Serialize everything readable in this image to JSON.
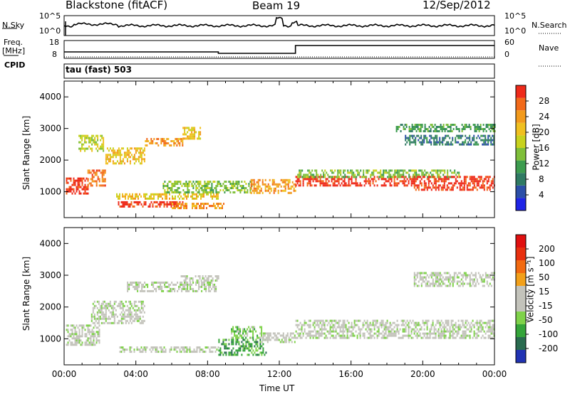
{
  "header": {
    "station": "Blackstone (fitACF)",
    "beam": "Beam 19",
    "date": "12/Sep/2012"
  },
  "nsky_panel": {
    "left_label": "N.Sky",
    "right_label": "N.Search",
    "left_ticks": [
      "10^5",
      "10^0"
    ],
    "right_ticks": [
      "10^5",
      "10^0"
    ]
  },
  "freq_panel": {
    "left_label_1": "Freq.",
    "left_label_2": "[MHz]",
    "right_label": "Nave",
    "left_ticks": [
      "18",
      "8"
    ],
    "right_ticks": [
      "60",
      "0"
    ]
  },
  "cpid_panel": {
    "left_label": "CPID",
    "mode_text": "tau (fast) 503"
  },
  "colors": {
    "frame": "#000000",
    "background": "#ffffff"
  },
  "chart_data": [
    {
      "type": "heatmap",
      "title": "Power",
      "xlabel": "Time UT",
      "ylabel": "Slant Range [km]",
      "x_ticks": [
        "00:00",
        "04:00",
        "08:00",
        "12:00",
        "16:00",
        "20:00",
        "00:00"
      ],
      "x_range_hours": [
        0,
        24
      ],
      "ylim": [
        180,
        4500
      ],
      "y_ticks": [
        "1000",
        "2000",
        "3000",
        "4000"
      ],
      "y_tick_values": [
        1000,
        2000,
        3000,
        4000
      ],
      "colorbar": {
        "label": "Power [dB]",
        "ticks": [
          "4",
          "8",
          "12",
          "16",
          "20",
          "24",
          "28"
        ],
        "colors": [
          "#1f24e6",
          "#2c4fa8",
          "#2f7a63",
          "#3d9c4f",
          "#7fbf3a",
          "#c8d21e",
          "#f0c020",
          "#f29a1c",
          "#f26a1a",
          "#ee2a1a"
        ]
      },
      "features": [
        {
          "t0": 0.1,
          "t1": 1.3,
          "r0": 950,
          "r1": 1450,
          "level": 9
        },
        {
          "t0": 1.3,
          "t1": 2.3,
          "r0": 1200,
          "r1": 1700,
          "level": 8
        },
        {
          "t0": 0.8,
          "t1": 2.2,
          "r0": 2300,
          "r1": 2800,
          "level": 5
        },
        {
          "t0": 2.3,
          "t1": 4.5,
          "r0": 1900,
          "r1": 2400,
          "level": 6
        },
        {
          "t0": 4.5,
          "t1": 6.6,
          "r0": 2450,
          "r1": 2700,
          "level": 7
        },
        {
          "t0": 6.6,
          "t1": 7.6,
          "r0": 2700,
          "r1": 3050,
          "level": 6
        },
        {
          "t0": 3.0,
          "t1": 6.6,
          "r0": 550,
          "r1": 700,
          "level": 9
        },
        {
          "t0": 6.0,
          "t1": 9.0,
          "r0": 500,
          "r1": 650,
          "level": 7
        },
        {
          "t0": 2.9,
          "t1": 8.6,
          "r0": 780,
          "r1": 950,
          "level": 6
        },
        {
          "t0": 5.5,
          "t1": 10.5,
          "r0": 1000,
          "r1": 1350,
          "level": 4
        },
        {
          "t0": 10.4,
          "t1": 12.9,
          "r0": 950,
          "r1": 1400,
          "level": 7
        },
        {
          "t0": 12.9,
          "t1": 19.5,
          "r0": 1200,
          "r1": 1500,
          "level": 9
        },
        {
          "t0": 13.0,
          "t1": 22.0,
          "r0": 1450,
          "r1": 1700,
          "level": 4
        },
        {
          "t0": 19.5,
          "t1": 24.0,
          "r0": 1050,
          "r1": 1500,
          "level": 9
        },
        {
          "t0": 18.5,
          "t1": 24.0,
          "r0": 2900,
          "r1": 3150,
          "level": 3
        },
        {
          "t0": 19.0,
          "t1": 24.0,
          "r0": 2500,
          "r1": 2800,
          "level": 2
        }
      ]
    },
    {
      "type": "heatmap",
      "title": "Velocity",
      "xlabel": "Time UT",
      "ylabel": "Slant Range [km]",
      "x_ticks": [
        "00:00",
        "04:00",
        "08:00",
        "12:00",
        "16:00",
        "20:00",
        "00:00"
      ],
      "x_range_hours": [
        0,
        24
      ],
      "ylim": [
        180,
        4500
      ],
      "y_ticks": [
        "1000",
        "2000",
        "3000",
        "4000"
      ],
      "y_tick_values": [
        1000,
        2000,
        3000,
        4000
      ],
      "colorbar": {
        "label": "Velocity [m s⁻¹]",
        "ticks": [
          "200",
          "100",
          "50",
          "15",
          "-15",
          "-50",
          "-100",
          "-200"
        ],
        "colors": [
          "#2133b3",
          "#2a6b4f",
          "#35a53a",
          "#7fd24a",
          "#c3c3bb",
          "#c3c3bb",
          "#f2a01a",
          "#f26a10",
          "#e8300f",
          "#e01010"
        ]
      },
      "features": [
        {
          "t0": 0.1,
          "t1": 2.0,
          "r0": 800,
          "r1": 1450,
          "level": 4
        },
        {
          "t0": 1.5,
          "t1": 4.5,
          "r0": 1500,
          "r1": 2200,
          "level": 4
        },
        {
          "t0": 3.5,
          "t1": 8.5,
          "r0": 2500,
          "r1": 2800,
          "level": 4
        },
        {
          "t0": 6.5,
          "t1": 8.6,
          "r0": 2800,
          "r1": 3000,
          "level": 4
        },
        {
          "t0": 3.0,
          "t1": 8.6,
          "r0": 580,
          "r1": 760,
          "level": 4
        },
        {
          "t0": 8.6,
          "t1": 11.3,
          "r0": 500,
          "r1": 1000,
          "level": 2
        },
        {
          "t0": 9.3,
          "t1": 11.0,
          "r0": 1000,
          "r1": 1400,
          "level": 3
        },
        {
          "t0": 11.0,
          "t1": 12.9,
          "r0": 900,
          "r1": 1200,
          "level": 4
        },
        {
          "t0": 12.9,
          "t1": 24.0,
          "r0": 1050,
          "r1": 1600,
          "level": 4
        },
        {
          "t0": 19.5,
          "t1": 24.0,
          "r0": 2650,
          "r1": 3100,
          "level": 4
        }
      ]
    }
  ]
}
